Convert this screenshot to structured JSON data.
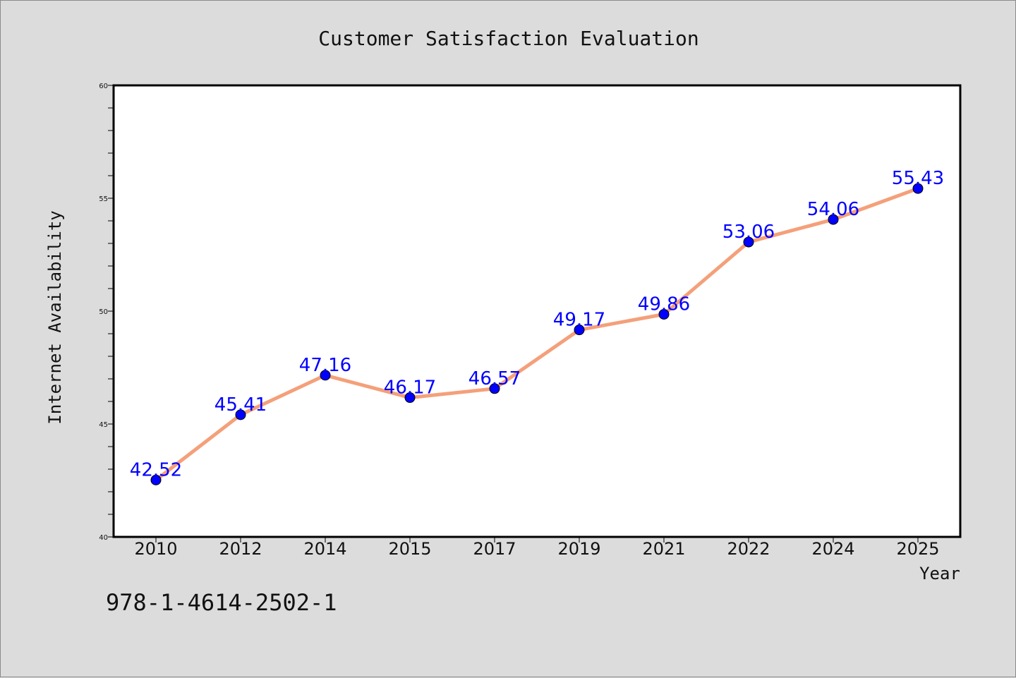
{
  "chart_data": {
    "type": "line",
    "title": "Customer Satisfaction Evaluation",
    "xlabel": "Year",
    "ylabel": "Internet Availability",
    "categories": [
      "2010",
      "2012",
      "2014",
      "2015",
      "2017",
      "2019",
      "2021",
      "2022",
      "2024",
      "2025"
    ],
    "values": [
      42.52,
      45.41,
      47.16,
      46.17,
      46.57,
      49.17,
      49.86,
      53.06,
      54.06,
      55.43
    ],
    "data_labels": [
      "42.52",
      "45.41",
      "47.16",
      "46.17",
      "46.57",
      "49.17",
      "49.86",
      "53.06",
      "54.06",
      "55.43"
    ],
    "ylim": [
      40,
      60
    ],
    "yticks": [
      40,
      45,
      50,
      55,
      60
    ],
    "ytick_labels": [
      "40",
      "45",
      "50",
      "55",
      "60"
    ],
    "grid": false,
    "legend": "none",
    "line_color": "#f4a07a",
    "marker_color": "#0000ff",
    "label_color": "#0000ff"
  },
  "footnote": "978-1-4614-2502-1"
}
